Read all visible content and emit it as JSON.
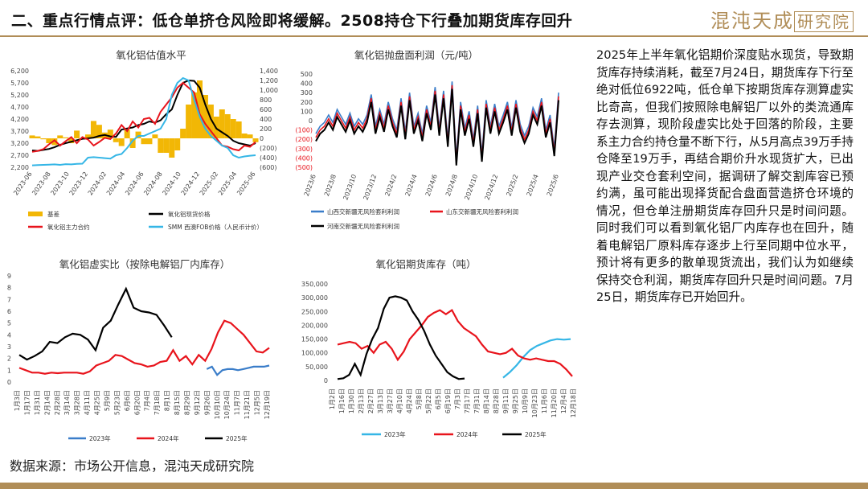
{
  "header": {
    "title": "二、重点行情点评：低仓单挤仓风险即将缓解。2508持仓下行叠加期货库存回升",
    "logo_main": "混沌天成",
    "logo_box": "研究院"
  },
  "source": "数据来源：市场公开信息，混沌天成研究院",
  "analysis_text": "2025年上半年氧化铝期价深度贴水现货，导致期货库存持续消耗，截至7月24日，期货库存下行至绝对低位6922吨，低仓单下按期货库存测算虚实比奇高，但我们按照除电解铝厂以外的类流通库存去测算，现阶段虚实比处于回落的阶段，主要系主力合约持仓量不断下行，从5月高点39万手持仓降至19万手，再结合期价升水现货扩大，已出现产业交仓套利空间，据调研了解交割库容已预约满，虽可能出现择货配合盘面营造挤仓环境的情况，但仓单注册期货库存回升只是时间问题。同时我们可以看到氧化铝厂内库存也在回升，随着电解铝厂原料库存逐步上行至同期中位水平，预计将有更多的散单现货流出，我们认为如继续保持交仓利润，期货库存回升只是时间问题。7月25日，期货库存已开始回升。",
  "colors": {
    "gold": "#b08d57",
    "black": "#000000",
    "red": "#e8141c",
    "blue": "#3a7dc9",
    "cyan": "#35b6e6",
    "yellow": "#f2b705"
  },
  "chart_data": [
    {
      "id": "valuation",
      "type": "line",
      "title": "氧化铝估值水平",
      "x_ticks": [
        "2023-06",
        "2023-08",
        "2023-10",
        "2023-12",
        "2024-02",
        "2024-04",
        "2024-06",
        "2024-08",
        "2024-10",
        "2024-12",
        "2025-02",
        "2025-04",
        "2025-06"
      ],
      "y_left_ticks": [
        "2,200",
        "2,700",
        "3,200",
        "3,700",
        "4,200",
        "4,700",
        "5,200",
        "5,700",
        "6,200"
      ],
      "y_right_ticks": [
        "1,400",
        "1,200",
        "1,000",
        "800",
        "600",
        "400",
        "200",
        "0",
        "(200)",
        "(400)",
        "(600)"
      ],
      "ylim_left": [
        2200,
        6200
      ],
      "ylim_right": [
        -600,
        1400
      ],
      "legend": [
        "基差",
        "氧化铝现货价格",
        "氧化铝主力合约",
        "SMM 西澳FOB价格（人民币计价）"
      ],
      "series": [
        {
          "name": "氧化铝现货价格",
          "color": "#000000",
          "values": [
            2900,
            2880,
            2920,
            2960,
            3030,
            3130,
            3200,
            3260,
            3320,
            3380,
            3400,
            3430,
            3500,
            3540,
            3480,
            3460,
            3760,
            3810,
            3850,
            3950,
            4000,
            4100,
            4050,
            4150,
            4400,
            4600,
            5200,
            5700,
            5800,
            5780,
            5500,
            4800,
            4200,
            3800,
            3650,
            3500,
            3300,
            3200,
            3150,
            3100,
            3200
          ]
        },
        {
          "name": "氧化铝主力合约",
          "color": "#e8141c",
          "values": [
            2840,
            2880,
            2950,
            3150,
            3320,
            3100,
            3280,
            3450,
            3200,
            3450,
            3350,
            3100,
            3250,
            3420,
            3370,
            3600,
            3950,
            3700,
            4100,
            3850,
            4200,
            4250,
            4000,
            4500,
            4800,
            5100,
            5500,
            5700,
            5500,
            5300,
            4400,
            4000,
            3700,
            3400,
            3100,
            3050,
            2950,
            2900,
            3100,
            3050,
            3250
          ]
        },
        {
          "name": "SMM 西澳FOB价格（人民币计价）",
          "color": "#35b6e6",
          "values": [
            2280,
            2290,
            2300,
            2310,
            2320,
            2300,
            2330,
            2320,
            2340,
            2350,
            2600,
            2620,
            2600,
            2580,
            2560,
            2700,
            2750,
            3000,
            3300,
            3500,
            3500,
            3600,
            3700,
            3800,
            4200,
            5200,
            5700,
            5900,
            5800,
            5000,
            4300,
            3800,
            3500,
            3300,
            3100,
            3000,
            2700,
            2600,
            2650,
            2680,
            2700
          ]
        },
        {
          "name": "基差",
          "color": "#f2b705",
          "type": "area",
          "values": [
            60,
            40,
            -20,
            -100,
            -140,
            60,
            20,
            -100,
            160,
            -20,
            80,
            360,
            280,
            120,
            180,
            -80,
            -160,
            180,
            -200,
            140,
            -120,
            -120,
            80,
            -300,
            -300,
            -400,
            -250,
            200,
            700,
            950,
            1200,
            900,
            700,
            450,
            600,
            500,
            400,
            350,
            100,
            80,
            -80
          ]
        }
      ]
    },
    {
      "id": "profit",
      "type": "line",
      "title": "氧化铝抛盘面利润（元/吨）",
      "x_ticks": [
        "2023/6",
        "2023/8",
        "2023/10",
        "2023/12",
        "2024/2",
        "2024/4",
        "2024/6",
        "2024/8",
        "2024/10",
        "2024/12",
        "2025/2",
        "2025/4",
        "2025/6"
      ],
      "y_ticks": [
        "500",
        "400",
        "300",
        "200",
        "100",
        "0",
        "(100)",
        "(200)",
        "(300)",
        "(400)",
        "(500)"
      ],
      "ylim": [
        -500,
        500
      ],
      "legend": [
        "山西交新疆无风险套利利润",
        "山东交新疆无风险套利利润",
        "河南交新疆无风险套利利润"
      ],
      "series": [
        {
          "name": "山西交新疆无风险套利利润",
          "color": "#3a7dc9",
          "values": [
            -140,
            -60,
            -20,
            60,
            -20,
            120,
            40,
            -40,
            80,
            -60,
            20,
            -40,
            60,
            280,
            -60,
            120,
            -40,
            200,
            20,
            -100,
            240,
            -120,
            300,
            -60,
            80,
            -140,
            160,
            -20,
            360,
            -80,
            320,
            -200,
            420,
            -400,
            200,
            -80,
            100,
            -200,
            160,
            -360,
            220,
            -60,
            180,
            -60,
            60,
            200,
            -80,
            220,
            -40,
            -160,
            -60,
            140,
            40,
            240,
            -100,
            60,
            -300,
            300
          ]
        },
        {
          "name": "山东交新疆无风险套利利润",
          "color": "#e8141c",
          "values": [
            -180,
            -100,
            -60,
            20,
            -60,
            80,
            0,
            -80,
            40,
            -100,
            -20,
            -80,
            20,
            240,
            -100,
            80,
            -80,
            160,
            -20,
            -140,
            200,
            -160,
            260,
            -100,
            40,
            -180,
            120,
            -60,
            320,
            -120,
            280,
            -240,
            380,
            -440,
            160,
            -120,
            60,
            -240,
            120,
            -400,
            180,
            -100,
            140,
            -100,
            20,
            160,
            -120,
            180,
            -80,
            -200,
            -100,
            100,
            0,
            200,
            -140,
            20,
            -340,
            260
          ]
        },
        {
          "name": "河南交新疆无风险套利利润",
          "color": "#000000",
          "values": [
            -220,
            -140,
            -100,
            -20,
            -100,
            40,
            -40,
            -120,
            0,
            -140,
            -60,
            -120,
            -20,
            200,
            -140,
            40,
            -120,
            120,
            -60,
            -180,
            160,
            -200,
            220,
            -140,
            0,
            -220,
            80,
            -100,
            280,
            -160,
            240,
            -280,
            340,
            -480,
            120,
            -160,
            20,
            -280,
            80,
            -440,
            140,
            -140,
            100,
            -140,
            -20,
            120,
            -160,
            140,
            -120,
            -240,
            -140,
            60,
            -40,
            160,
            -180,
            -20,
            -380,
            220
          ]
        }
      ]
    },
    {
      "id": "ratio",
      "type": "line",
      "title": "氧化铝虚实比（按除电解铝厂内库存）",
      "x_ticks": [
        "1月3日",
        "1月17日",
        "1月31日",
        "2月14日",
        "2月28日",
        "3月14日",
        "3月28日",
        "4月11日",
        "4月25日",
        "5月9日",
        "5月23日",
        "6月6日",
        "6月20日",
        "7月4日",
        "7月18日",
        "8月1日",
        "8月15日",
        "8月29日",
        "9月12日",
        "9月26日",
        "10月10日",
        "10月24日",
        "11月7日",
        "11月21日",
        "12月5日",
        "12月19日"
      ],
      "y_ticks": [
        "0",
        "1",
        "2",
        "3",
        "4",
        "5",
        "6",
        "7",
        "8",
        "9"
      ],
      "ylim": [
        0,
        9
      ],
      "legend": [
        "2023年",
        "2024年",
        "2025年"
      ],
      "series": [
        {
          "name": "2023年",
          "color": "#3a7dc9",
          "values": [
            null,
            null,
            null,
            null,
            null,
            null,
            null,
            null,
            null,
            null,
            null,
            null,
            null,
            null,
            null,
            null,
            null,
            null,
            null,
            1.1,
            1.3,
            0.6,
            1.0,
            1.1,
            1.1,
            1.0,
            1.1,
            1.2,
            1.3,
            1.3,
            1.3,
            1.4
          ]
        },
        {
          "name": "2024年",
          "color": "#e8141c",
          "values": [
            1.2,
            1.0,
            0.8,
            0.8,
            0.7,
            0.8,
            0.75,
            0.8,
            0.8,
            0.8,
            0.7,
            0.9,
            1.4,
            1.6,
            1.8,
            2.3,
            2.2,
            1.9,
            1.6,
            1.5,
            1.3,
            1.4,
            1.7,
            1.8,
            2.7,
            1.8,
            2.2,
            1.5,
            2.3,
            1.8,
            2.8,
            4.2,
            5.2,
            5.0,
            4.5,
            4.0,
            3.3,
            2.6,
            2.5,
            2.9
          ]
        },
        {
          "name": "2025年",
          "color": "#000000",
          "values": [
            2.3,
            1.9,
            2.2,
            2.6,
            3.4,
            3.3,
            3.8,
            4.1,
            4.0,
            3.6,
            2.7,
            4.6,
            5.2,
            6.6,
            7.9,
            6.3,
            6.0,
            5.9,
            5.7,
            4.8,
            3.8
          ]
        }
      ]
    },
    {
      "id": "inventory",
      "type": "line",
      "title": "氧化铝期货库存（吨）",
      "x_ticks": [
        "1月2日",
        "1月16日",
        "1月30日",
        "2月13日",
        "2月27日",
        "3月13日",
        "3月27日",
        "4月10日",
        "4月24日",
        "5月8日",
        "5月22日",
        "6月5日",
        "6月19日",
        "7月3日",
        "7月17日",
        "7月31日",
        "8月14日",
        "8月28日",
        "9月11日",
        "9月25日",
        "10月9日",
        "10月23日",
        "11月6日",
        "11月20日",
        "12月4日",
        "12月18日"
      ],
      "y_ticks": [
        "0",
        "50,000",
        "100,000",
        "150,000",
        "200,000",
        "250,000",
        "300,000",
        "350,000"
      ],
      "ylim": [
        0,
        350000
      ],
      "legend": [
        "2023年",
        "2024年",
        "2025年"
      ],
      "series": [
        {
          "name": "2023年",
          "color": "#35b6e6",
          "values": [
            null,
            null,
            null,
            null,
            null,
            null,
            null,
            null,
            null,
            null,
            null,
            null,
            null,
            null,
            null,
            null,
            null,
            null,
            null,
            null,
            null,
            null,
            null,
            null,
            null,
            null,
            null,
            null,
            null,
            null,
            null,
            null,
            null,
            null,
            null,
            null,
            null,
            null,
            null,
            10000,
            30000,
            55000,
            85000,
            110000,
            125000,
            135000,
            145000,
            150000,
            148000,
            150000
          ]
        },
        {
          "name": "2024年",
          "color": "#e8141c",
          "values": [
            130000,
            135000,
            140000,
            135000,
            115000,
            125000,
            100000,
            130000,
            140000,
            115000,
            75000,
            105000,
            150000,
            175000,
            200000,
            230000,
            245000,
            255000,
            240000,
            255000,
            215000,
            190000,
            175000,
            160000,
            130000,
            105000,
            100000,
            95000,
            100000,
            115000,
            90000,
            80000,
            75000,
            80000,
            75000,
            70000,
            70000,
            60000,
            40000,
            15000
          ]
        },
        {
          "name": "2025年",
          "color": "#000000",
          "values": [
            5000,
            8000,
            20000,
            60000,
            20000,
            95000,
            150000,
            190000,
            260000,
            300000,
            305000,
            300000,
            290000,
            250000,
            220000,
            180000,
            130000,
            90000,
            60000,
            30000,
            15000,
            5000,
            7000
          ]
        }
      ]
    }
  ]
}
